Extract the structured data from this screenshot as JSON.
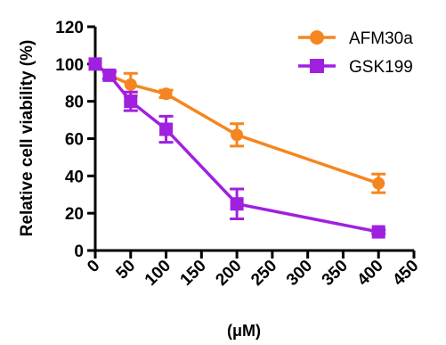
{
  "chart_data": {
    "type": "line",
    "title": "",
    "xlabel": "(μM)",
    "ylabel": "Relative cell viability (%)",
    "xlim": [
      0,
      450
    ],
    "ylim": [
      0,
      120
    ],
    "xticks": [
      0,
      50,
      100,
      150,
      200,
      250,
      300,
      350,
      400,
      450
    ],
    "yticks": [
      0,
      20,
      40,
      60,
      80,
      100,
      120
    ],
    "grid": false,
    "legend": "top-right",
    "series": [
      {
        "name": "AFM30a",
        "color": "#F5861F",
        "marker": "circle",
        "points": [
          {
            "x": 0,
            "y": 100,
            "err": 0
          },
          {
            "x": 20,
            "y": 94,
            "err": 2
          },
          {
            "x": 50,
            "y": 89,
            "err": 6
          },
          {
            "x": 100,
            "y": 84,
            "err": 2
          },
          {
            "x": 200,
            "y": 62,
            "err": 6
          },
          {
            "x": 400,
            "y": 36,
            "err": 5
          }
        ]
      },
      {
        "name": "GSK199",
        "color": "#A020E0",
        "marker": "square",
        "points": [
          {
            "x": 0,
            "y": 100,
            "err": 0
          },
          {
            "x": 20,
            "y": 94,
            "err": 2
          },
          {
            "x": 50,
            "y": 80,
            "err": 5
          },
          {
            "x": 100,
            "y": 65,
            "err": 7
          },
          {
            "x": 200,
            "y": 25,
            "err": 8
          },
          {
            "x": 400,
            "y": 10,
            "err": 1
          }
        ]
      }
    ]
  }
}
